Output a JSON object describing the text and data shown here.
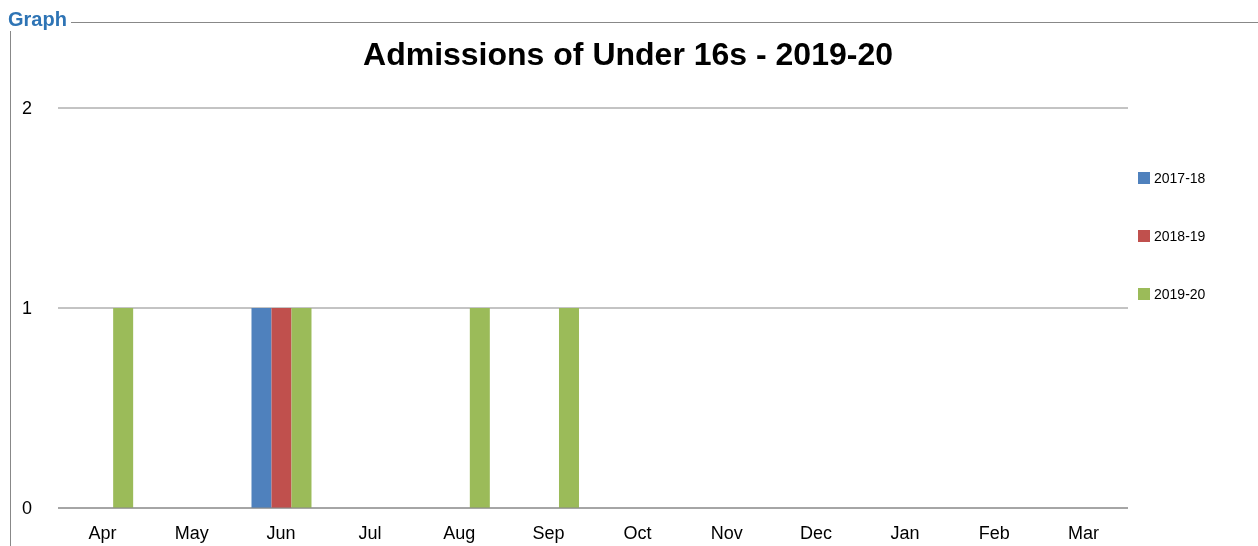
{
  "chart_data": {
    "type": "bar",
    "title": "Admissions of Under 16s - 2019-20",
    "annotations": [
      "Graph"
    ],
    "categories": [
      "Apr",
      "May",
      "Jun",
      "Jul",
      "Aug",
      "Sep",
      "Oct",
      "Nov",
      "Dec",
      "Jan",
      "Feb",
      "Mar"
    ],
    "series": [
      {
        "name": "2017-18",
        "color": "#4f81bd",
        "values": [
          0,
          0,
          1,
          0,
          0,
          0,
          0,
          0,
          0,
          0,
          0,
          0
        ]
      },
      {
        "name": "2018-19",
        "color": "#c0504d",
        "values": [
          0,
          0,
          1,
          0,
          0,
          0,
          0,
          0,
          0,
          0,
          0,
          0
        ]
      },
      {
        "name": "2019-20",
        "color": "#9bbb59",
        "values": [
          1,
          0,
          1,
          0,
          1,
          1,
          0,
          0,
          0,
          0,
          0,
          0
        ]
      }
    ],
    "ylim": [
      0,
      2
    ],
    "yticks": [
      0,
      1,
      2
    ],
    "grid": "y",
    "legend": "right"
  }
}
